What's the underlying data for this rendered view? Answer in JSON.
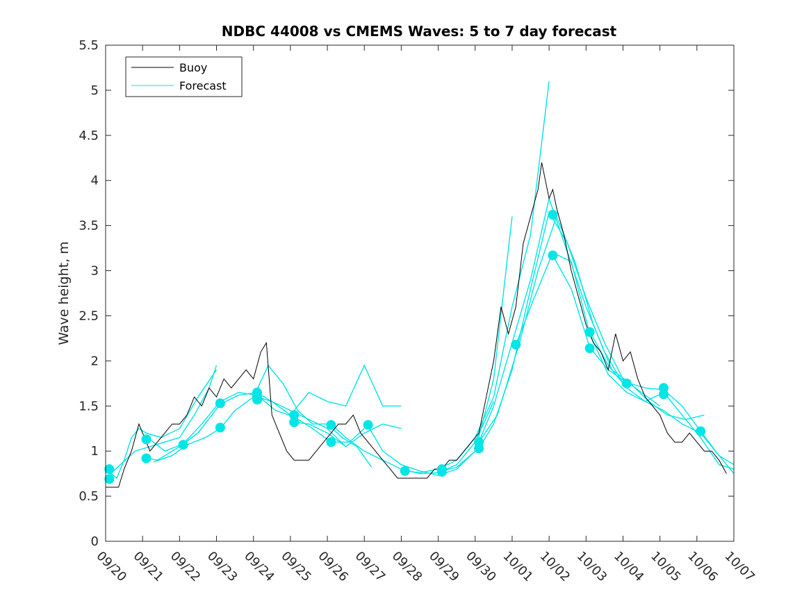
{
  "chart_data": {
    "type": "line",
    "title": "NDBC 44008 vs CMEMS Waves: 5 to 7 day forecast",
    "xlabel": "",
    "ylabel": "Wave height, m",
    "xlim": [
      0,
      17
    ],
    "ylim": [
      0,
      5.5
    ],
    "yticks": [
      0,
      0.5,
      1,
      1.5,
      2,
      2.5,
      3,
      3.5,
      4,
      4.5,
      5,
      5.5
    ],
    "ytick_labels": [
      "0",
      "0.5",
      "1",
      "1.5",
      "2",
      "2.5",
      "3",
      "3.5",
      "4",
      "4.5",
      "5",
      "5.5"
    ],
    "xticks": [
      0,
      1,
      2,
      3,
      4,
      5,
      6,
      7,
      8,
      9,
      10,
      11,
      12,
      13,
      14,
      15,
      16,
      17
    ],
    "xtick_labels": [
      "09/20",
      "09/21",
      "09/22",
      "09/23",
      "09/24",
      "09/25",
      "09/26",
      "09/27",
      "09/28",
      "09/29",
      "09/30",
      "10/01",
      "10/02",
      "10/03",
      "10/04",
      "10/05",
      "10/06",
      "10/07"
    ],
    "legend": {
      "position": "top-left",
      "entries": [
        "Buoy",
        "Forecast"
      ]
    },
    "colors": {
      "buoy": "#000000",
      "forecast": "#00e5e5"
    },
    "buoy": {
      "name": "Buoy",
      "x": [
        0,
        0.35,
        0.5,
        0.7,
        0.9,
        1.0,
        1.2,
        1.4,
        1.6,
        1.8,
        2.0,
        2.2,
        2.4,
        2.6,
        2.8,
        3.0,
        3.2,
        3.4,
        3.6,
        3.8,
        4.0,
        4.2,
        4.35,
        4.5,
        4.7,
        4.9,
        5.1,
        5.3,
        5.5,
        5.7,
        5.9,
        6.1,
        6.3,
        6.5,
        6.7,
        6.9,
        7.1,
        7.3,
        7.5,
        7.7,
        7.9,
        8.1,
        8.3,
        8.5,
        8.7,
        8.9,
        9.1,
        9.3,
        9.5,
        9.7,
        9.9,
        10.1,
        10.3,
        10.5,
        10.7,
        10.9,
        11.1,
        11.3,
        11.5,
        11.7,
        11.8,
        11.9,
        12.0,
        12.1,
        12.2,
        12.4,
        12.6,
        12.8,
        13.0,
        13.2,
        13.4,
        13.6,
        13.8,
        14.0,
        14.2,
        14.4,
        14.6,
        14.8,
        15.0,
        15.2,
        15.4,
        15.6,
        15.8,
        16.0,
        16.2,
        16.4,
        16.6,
        16.8
      ],
      "y": [
        0.6,
        0.6,
        0.8,
        1.0,
        1.3,
        1.2,
        1.0,
        1.1,
        1.2,
        1.3,
        1.3,
        1.4,
        1.6,
        1.5,
        1.7,
        1.6,
        1.8,
        1.7,
        1.8,
        1.9,
        1.8,
        2.1,
        2.2,
        1.4,
        1.2,
        1.0,
        0.9,
        0.9,
        0.9,
        1.0,
        1.1,
        1.2,
        1.3,
        1.3,
        1.4,
        1.2,
        1.1,
        1.0,
        0.9,
        0.8,
        0.7,
        0.7,
        0.7,
        0.7,
        0.7,
        0.8,
        0.8,
        0.9,
        0.9,
        1.0,
        1.1,
        1.2,
        1.6,
        2.0,
        2.6,
        2.3,
        2.6,
        3.3,
        3.6,
        3.9,
        4.2,
        4.0,
        3.8,
        3.9,
        3.7,
        3.4,
        3.0,
        2.7,
        2.4,
        2.2,
        2.1,
        1.9,
        2.3,
        2.0,
        2.1,
        1.8,
        1.6,
        1.5,
        1.4,
        1.2,
        1.1,
        1.1,
        1.2,
        1.1,
        1.0,
        1.0,
        0.9,
        0.75
      ]
    },
    "forecast": [
      {
        "name": "Forecast",
        "x": [
          0,
          0.3,
          0.5,
          0.7,
          0.9,
          1.1,
          1.5,
          2.0,
          2.5,
          3.0
        ],
        "y": [
          0.8,
          0.7,
          0.9,
          1.15,
          1.25,
          1.2,
          1.15,
          1.25,
          1.6,
          1.9
        ]
      },
      {
        "name": "Forecast",
        "x": [
          0,
          0.4,
          0.8,
          1.2,
          1.6,
          2.0,
          2.4,
          2.8,
          3.0
        ],
        "y": [
          0.7,
          0.85,
          1.0,
          1.05,
          1.1,
          1.15,
          1.4,
          1.7,
          1.95
        ]
      },
      {
        "name": "Forecast",
        "x": [
          1.0,
          1.4,
          2.0,
          2.5,
          3.1,
          3.6,
          4.1,
          4.5,
          5.0,
          5.5,
          6.0,
          6.5
        ],
        "y": [
          0.93,
          0.9,
          1.05,
          1.2,
          1.52,
          1.62,
          1.65,
          1.55,
          1.45,
          1.35,
          1.25,
          1.05
        ]
      },
      {
        "name": "Forecast",
        "x": [
          1.2,
          1.6,
          2.1,
          2.6,
          3.1,
          3.6,
          4.1,
          4.6,
          5.1,
          5.6,
          6.1,
          6.6,
          7.0
        ],
        "y": [
          1.13,
          1.0,
          1.08,
          1.3,
          1.55,
          1.65,
          1.62,
          1.45,
          1.38,
          1.25,
          1.1,
          1.1,
          1.25
        ]
      },
      {
        "name": "Forecast",
        "x": [
          1.3,
          1.8,
          2.2,
          2.7,
          3.1,
          3.5,
          4.0,
          4.4,
          4.8,
          5.2,
          5.6,
          6.0,
          6.4,
          6.8,
          7.2
        ],
        "y": [
          0.88,
          0.95,
          1.07,
          1.15,
          1.25,
          1.45,
          1.6,
          1.95,
          1.75,
          1.45,
          1.3,
          1.3,
          1.15,
          1.05,
          0.82
        ]
      },
      {
        "name": "Forecast",
        "x": [
          4.1,
          4.5,
          5.0,
          5.5,
          6.0,
          6.5,
          7.0,
          7.5,
          8.0
        ],
        "y": [
          1.6,
          1.55,
          1.4,
          1.65,
          1.55,
          1.5,
          1.95,
          1.5,
          1.5
        ]
      },
      {
        "name": "Forecast",
        "x": [
          5.1,
          5.5,
          6.0,
          6.5,
          7.0,
          7.5,
          8.0
        ],
        "y": [
          1.32,
          1.3,
          1.2,
          1.05,
          1.2,
          1.3,
          1.25
        ]
      },
      {
        "name": "Forecast",
        "x": [
          6.1,
          6.5,
          7.0,
          7.5,
          8.0,
          8.5,
          9.0,
          9.5,
          10.0,
          10.5
        ],
        "y": [
          1.3,
          1.15,
          1.0,
          0.9,
          0.8,
          0.75,
          0.76,
          0.85,
          1.1,
          1.55
        ]
      },
      {
        "name": "Forecast",
        "x": [
          7.1,
          7.5,
          8.0,
          8.5,
          9.0,
          9.5,
          10.0,
          10.5,
          11.0
        ],
        "y": [
          1.28,
          1.0,
          0.85,
          0.78,
          0.73,
          0.8,
          1.0,
          1.8,
          3.6
        ]
      },
      {
        "name": "Forecast",
        "x": [
          8.1,
          8.5,
          9.0,
          9.5,
          10.0,
          10.5,
          11.0,
          11.5,
          12.0
        ],
        "y": [
          0.78,
          0.76,
          0.8,
          0.9,
          1.15,
          1.6,
          2.6,
          3.4,
          5.1
        ]
      },
      {
        "name": "Forecast",
        "x": [
          9.1,
          9.5,
          10.0,
          10.5,
          11.0,
          11.5,
          12.0,
          12.5,
          13.0,
          13.5,
          14.0
        ],
        "y": [
          0.78,
          0.82,
          1.0,
          1.5,
          2.2,
          2.9,
          3.8,
          3.2,
          2.6,
          2.1,
          1.75
        ]
      },
      {
        "name": "Forecast",
        "x": [
          10.1,
          10.5,
          11.0,
          11.5,
          12.0,
          12.5,
          13.0,
          13.5,
          14.0,
          14.5,
          15.0
        ],
        "y": [
          1.03,
          1.3,
          1.9,
          2.8,
          3.65,
          3.3,
          2.7,
          2.2,
          1.8,
          1.65,
          1.5
        ]
      },
      {
        "name": "Forecast",
        "x": [
          10.1,
          10.6,
          11.2,
          11.7,
          12.2,
          12.7,
          13.2,
          13.7,
          14.2,
          14.7,
          15.2,
          15.7,
          16.2
        ],
        "y": [
          1.1,
          1.4,
          2.2,
          3.0,
          3.6,
          3.1,
          2.4,
          1.9,
          1.75,
          1.55,
          1.4,
          1.35,
          1.4
        ]
      },
      {
        "name": "Forecast",
        "x": [
          11.1,
          11.6,
          12.1,
          12.6,
          13.1,
          13.6,
          14.1,
          14.6,
          15.1,
          15.6,
          16.1,
          16.6,
          17.0
        ],
        "y": [
          2.18,
          2.7,
          3.2,
          3.1,
          2.3,
          1.85,
          1.65,
          1.55,
          1.45,
          1.3,
          1.2,
          0.95,
          0.85
        ]
      },
      {
        "name": "Forecast",
        "x": [
          12.1,
          12.6,
          13.1,
          13.6,
          14.1,
          14.6,
          15.1,
          15.6,
          16.1,
          16.6,
          17.0
        ],
        "y": [
          3.17,
          2.8,
          2.15,
          1.9,
          1.76,
          1.7,
          1.68,
          1.5,
          1.22,
          0.95,
          0.75
        ]
      },
      {
        "name": "Forecast",
        "x": [
          13.1,
          13.6,
          14.1,
          14.6,
          15.1,
          15.6,
          16.1,
          16.6,
          17.0
        ],
        "y": [
          2.33,
          1.95,
          1.7,
          1.55,
          1.65,
          1.4,
          1.15,
          0.85,
          0.8
        ]
      }
    ],
    "markers": {
      "x": [
        0.1,
        0.1,
        1.1,
        1.1,
        2.1,
        3.1,
        3.1,
        4.1,
        4.1,
        4.1,
        5.1,
        5.1,
        6.1,
        6.1,
        7.1,
        8.1,
        9.1,
        9.1,
        10.1,
        10.1,
        11.1,
        12.1,
        12.1,
        13.1,
        13.1,
        14.1,
        15.1,
        15.1,
        16.1
      ],
      "y": [
        0.8,
        0.69,
        1.13,
        0.92,
        1.07,
        1.53,
        1.26,
        1.65,
        1.61,
        1.57,
        1.4,
        1.32,
        1.29,
        1.1,
        1.29,
        0.78,
        0.8,
        0.77,
        1.1,
        1.03,
        2.18,
        3.62,
        3.17,
        2.32,
        2.14,
        1.75,
        1.7,
        1.63,
        1.22
      ]
    }
  }
}
